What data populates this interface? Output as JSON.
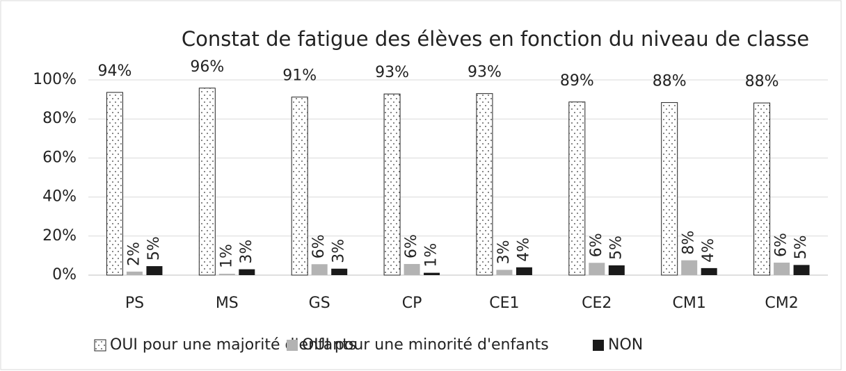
{
  "chart_data": {
    "type": "bar",
    "title": "Constat de fatigue des élèves en fonction du niveau de classe",
    "categories": [
      "PS",
      "MS",
      "GS",
      "CP",
      "CE1",
      "CE2",
      "CM1",
      "CM2"
    ],
    "series": [
      {
        "name": "OUI pour une majorité d'enfants",
        "color": "#ffffff",
        "pattern": "dots",
        "values": [
          93.6,
          95.8,
          91.2,
          92.8,
          93.0,
          88.7,
          88.4,
          88.2
        ],
        "value_labels": [
          "94%",
          "96%",
          "91%",
          "93%",
          "93%",
          "89%",
          "88%",
          "88%"
        ]
      },
      {
        "name": "OUI pour une minorité d'enfants",
        "color": "#b3b3b3",
        "values": [
          1.8,
          0.7,
          5.6,
          5.7,
          2.7,
          6.3,
          7.6,
          6.4
        ],
        "value_labels": [
          "2%",
          "1%",
          "6%",
          "6%",
          "3%",
          "6%",
          "8%",
          "6%"
        ]
      },
      {
        "name": "NON",
        "color": "#1a1a1a",
        "values": [
          4.6,
          3.0,
          3.3,
          1.2,
          4.0,
          5.0,
          3.6,
          5.2
        ],
        "value_labels": [
          "5%",
          "3%",
          "3%",
          "1%",
          "4%",
          "5%",
          "4%",
          "5%"
        ]
      }
    ],
    "ylim": [
      0,
      100
    ],
    "yticks": [
      {
        "value": 0,
        "label": "0%"
      },
      {
        "value": 20,
        "label": "20%"
      },
      {
        "value": 40,
        "label": "40%"
      },
      {
        "value": 60,
        "label": "60%"
      },
      {
        "value": 80,
        "label": "80%"
      },
      {
        "value": 100,
        "label": "100%"
      }
    ],
    "grid": true,
    "legend": "bottom"
  }
}
